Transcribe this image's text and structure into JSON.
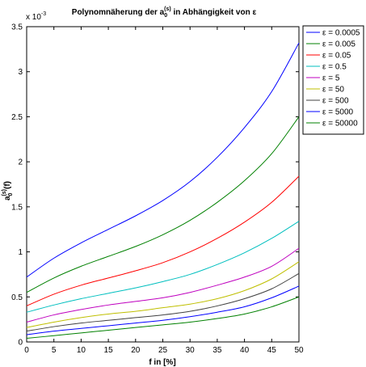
{
  "chart_data": {
    "type": "line",
    "title_main": "Polynomnäherung der a",
    "title_sub": "0",
    "title_sup": "(s)",
    "title_rest": " in Abhängigkeit von ε",
    "xlabel": "f in [%]",
    "ylabel_main": "a",
    "ylabel_sub": "0",
    "ylabel_sup": "(s)",
    "ylabel_rest": "(f)",
    "exponent_label": "x 10",
    "exponent_power": "-3",
    "xlim": [
      0,
      50
    ],
    "ylim": [
      0,
      0.0035
    ],
    "x_ticks": [
      0,
      5,
      10,
      15,
      20,
      25,
      30,
      35,
      40,
      45,
      50
    ],
    "y_ticks": [
      0,
      0.0005,
      0.001,
      0.0015,
      0.002,
      0.0025,
      0.003,
      0.0035
    ],
    "y_tick_labels": [
      "0",
      "0.5",
      "1",
      "1.5",
      "2",
      "2.5",
      "3",
      "3.5"
    ],
    "legend_position": "outside-top-right",
    "x": [
      0,
      5,
      10,
      15,
      20,
      25,
      30,
      35,
      40,
      45,
      50
    ],
    "series": [
      {
        "name": "ε = 0.0005",
        "color": "#0000ff",
        "values": [
          0.00072,
          0.00093,
          0.0011,
          0.00125,
          0.0014,
          0.00157,
          0.00178,
          0.00205,
          0.00238,
          0.00278,
          0.00332
        ]
      },
      {
        "name": "ε = 0.005",
        "color": "#008000",
        "values": [
          0.00055,
          0.00071,
          0.00084,
          0.00095,
          0.00106,
          0.00119,
          0.00135,
          0.00155,
          0.00179,
          0.00209,
          0.0025
        ]
      },
      {
        "name": "ε = 0.05",
        "color": "#ff0000",
        "values": [
          0.0004,
          0.00053,
          0.00063,
          0.00071,
          0.00079,
          0.00088,
          0.001,
          0.00115,
          0.00133,
          0.00155,
          0.00184
        ]
      },
      {
        "name": "ε = 0.5",
        "color": "#00bfbf",
        "values": [
          0.00033,
          0.00041,
          0.00048,
          0.00054,
          0.0006,
          0.00067,
          0.00075,
          0.00086,
          0.00099,
          0.00115,
          0.00134
        ]
      },
      {
        "name": "ε = 5",
        "color": "#bf00bf",
        "values": [
          0.00022,
          0.0003,
          0.00036,
          0.00041,
          0.00045,
          0.00049,
          0.00055,
          0.00063,
          0.00072,
          0.00084,
          0.00104
        ]
      },
      {
        "name": "ε = 50",
        "color": "#bfbf00",
        "values": [
          0.00016,
          0.00022,
          0.00027,
          0.00031,
          0.00034,
          0.00038,
          0.00042,
          0.00048,
          0.00057,
          0.0007,
          0.00089
        ]
      },
      {
        "name": "ε = 500",
        "color": "#404040",
        "values": [
          0.00012,
          0.00017,
          0.00021,
          0.00024,
          0.00027,
          0.0003,
          0.00034,
          0.0004,
          0.00048,
          0.00059,
          0.00076
        ]
      },
      {
        "name": "ε = 5000",
        "color": "#0000ff",
        "values": [
          8e-05,
          0.00012,
          0.00015,
          0.00018,
          0.00021,
          0.00024,
          0.00028,
          0.00033,
          0.00039,
          0.00049,
          0.00062
        ]
      },
      {
        "name": "ε = 50000",
        "color": "#008000",
        "values": [
          4e-05,
          7e-05,
          0.0001,
          0.00013,
          0.00016,
          0.00019,
          0.00022,
          0.00026,
          0.00031,
          0.00039,
          0.0005
        ]
      }
    ]
  }
}
